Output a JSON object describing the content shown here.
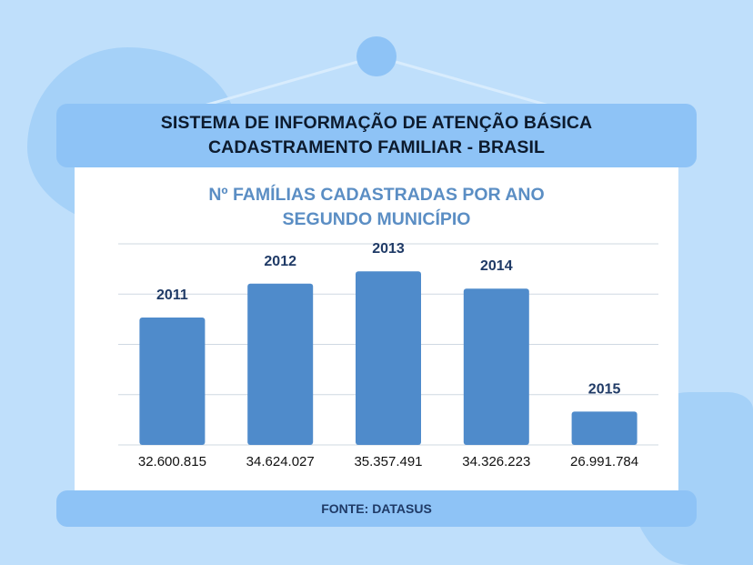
{
  "header": {
    "title_line1": "SISTEMA DE INFORMAÇÃO DE ATENÇÃO BÁSICA",
    "title_line2": "CADASTRAMENTO FAMILIAR - BRASIL"
  },
  "footer": {
    "source": "FONTE: DATASUS"
  },
  "colors": {
    "background": "#bfdffb",
    "banner": "#8ec3f6",
    "bar": "#4f8bcb",
    "chart_title": "#5b8ec4",
    "label": "#1f3a66"
  },
  "chart_data": {
    "type": "bar",
    "title_line1": "Nº FAMÍLIAS CADASTRADAS POR ANO",
    "title_line2": "SEGUNDO MUNICÍPIO",
    "categories": [
      "2011",
      "2012",
      "2013",
      "2014",
      "2015"
    ],
    "values": [
      32600815,
      34624027,
      35357491,
      34326223,
      26991784
    ],
    "value_labels": [
      "32.600.815",
      "34.624.027",
      "35.357.491",
      "34.326.223",
      "26.991.784"
    ],
    "category_labels_position": "above-bars",
    "value_labels_position": "below-axis",
    "ylim": [
      25000000,
      37000000
    ],
    "gridlines": [
      25000000,
      28000000,
      31000000,
      34000000,
      37000000
    ],
    "grid": true,
    "legend": "none"
  }
}
